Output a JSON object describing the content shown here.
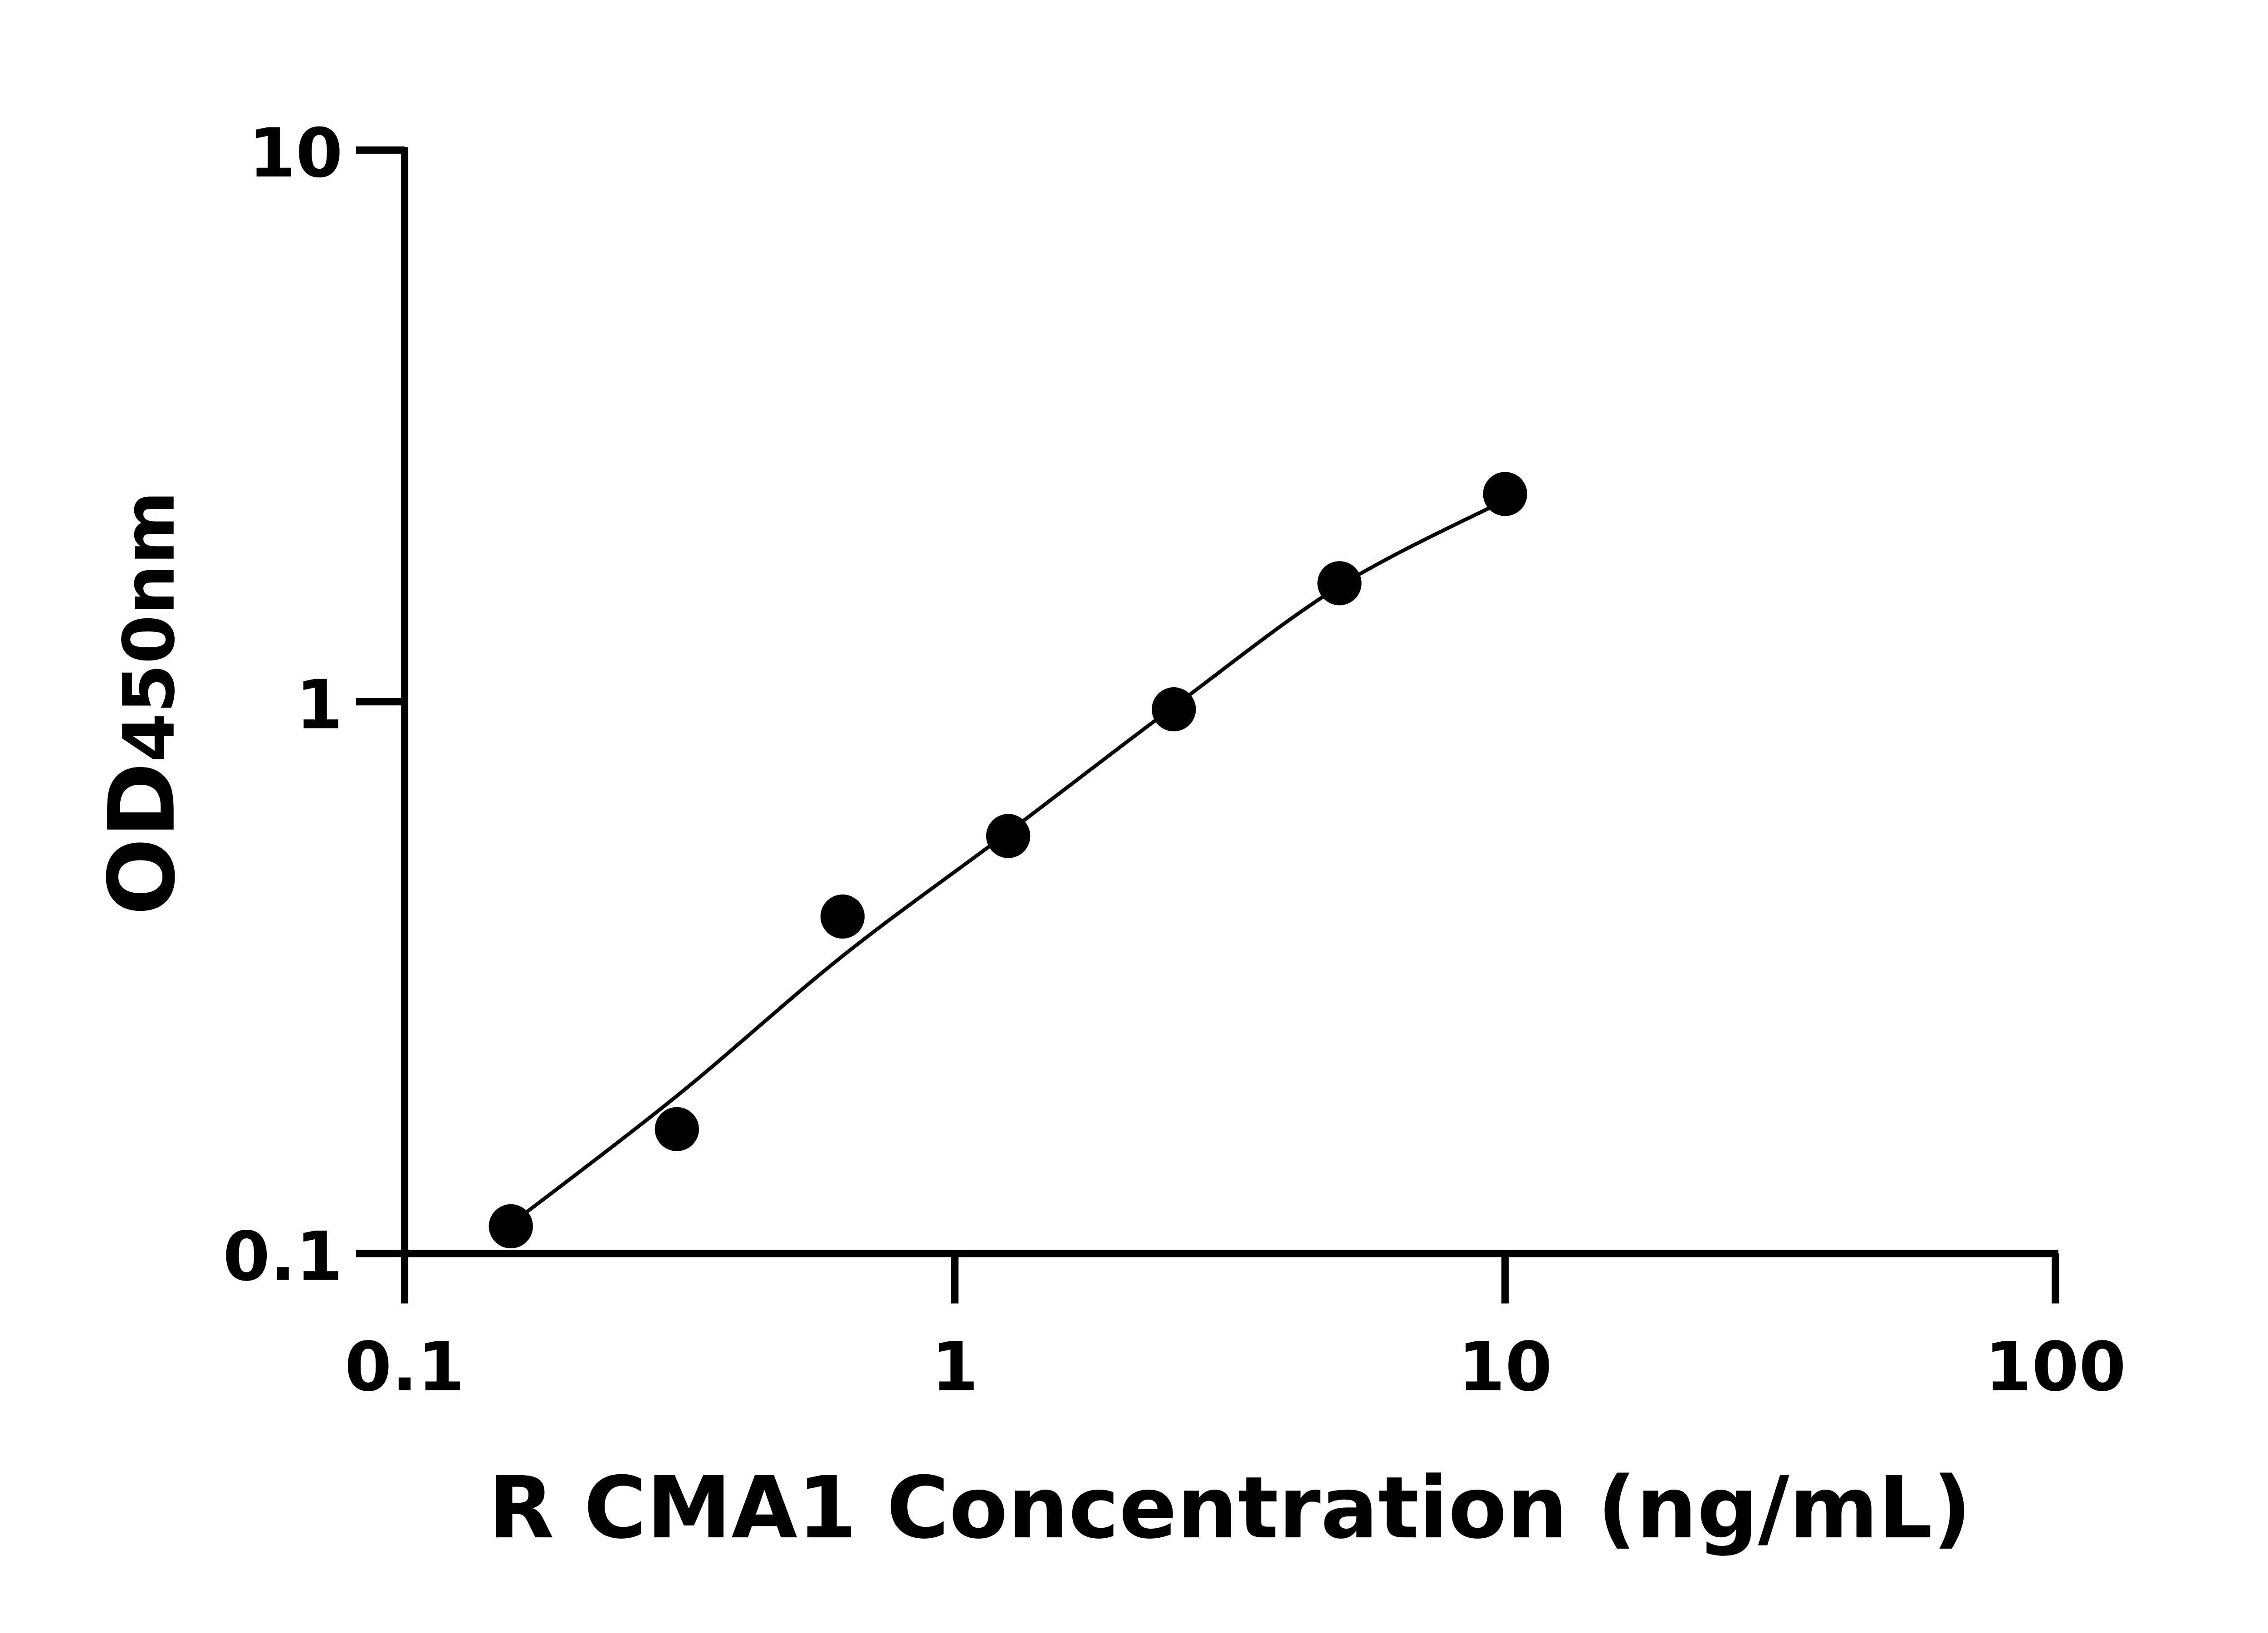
{
  "chart_data": {
    "type": "scatter",
    "xlabel": "R CMA1 Concentration (ng/mL)",
    "ylabel_main": "OD",
    "ylabel_sub": "450nm",
    "x_scale": "log",
    "y_scale": "log",
    "xlim": [
      0.1,
      100
    ],
    "ylim": [
      0.1,
      10
    ],
    "x_ticks": [
      0.1,
      1,
      10,
      100
    ],
    "x_tick_labels": [
      "0.1",
      "1",
      "10",
      "100"
    ],
    "y_ticks": [
      0.1,
      1,
      10
    ],
    "y_tick_labels": [
      "0.1",
      "1",
      "10"
    ],
    "grid": false,
    "marker_color": "#000000",
    "points": [
      {
        "x": 0.156,
        "y": 0.112
      },
      {
        "x": 0.3125,
        "y": 0.168
      },
      {
        "x": 0.625,
        "y": 0.408
      },
      {
        "x": 1.25,
        "y": 0.571
      },
      {
        "x": 2.5,
        "y": 0.969
      },
      {
        "x": 5,
        "y": 1.64
      },
      {
        "x": 10,
        "y": 2.38
      }
    ],
    "fit_curve": [
      {
        "x": 0.156,
        "y": 0.113
      },
      {
        "x": 0.3125,
        "y": 0.193
      },
      {
        "x": 0.625,
        "y": 0.346
      },
      {
        "x": 1.25,
        "y": 0.58
      },
      {
        "x": 2.5,
        "y": 0.98
      },
      {
        "x": 5,
        "y": 1.62
      },
      {
        "x": 10,
        "y": 2.32
      }
    ]
  }
}
